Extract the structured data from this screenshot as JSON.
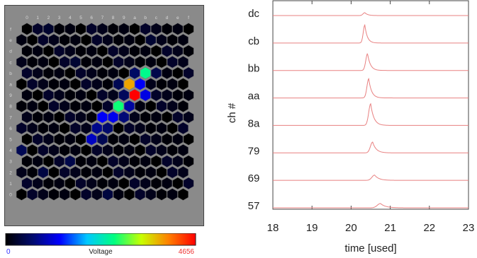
{
  "chart_data": [
    {
      "type": "heatmap",
      "columns": [
        "0",
        "1",
        "2",
        "3",
        "4",
        "5",
        "6",
        "7",
        "8",
        "9",
        "a",
        "b",
        "c",
        "d",
        "e",
        "f"
      ],
      "rows": [
        "f",
        "e",
        "d",
        "c",
        "b",
        "a",
        "9",
        "8",
        "7",
        "6",
        "5",
        "4",
        "3",
        "2",
        "1",
        "0"
      ],
      "active_cells": [
        {
          "row": "b",
          "col": "b",
          "value": 2600
        },
        {
          "row": "a",
          "col": "a",
          "value": 3800
        },
        {
          "row": "a",
          "col": "b",
          "value": 1300
        },
        {
          "row": "9",
          "col": "a",
          "value": 4656
        },
        {
          "row": "9",
          "col": "b",
          "value": 1200
        },
        {
          "row": "8",
          "col": "9",
          "value": 2700
        },
        {
          "row": "8",
          "col": "a",
          "value": 900
        },
        {
          "row": "7",
          "col": "7",
          "value": 1300
        },
        {
          "row": "7",
          "col": "8",
          "value": 1250
        },
        {
          "row": "7",
          "col": "9",
          "value": 700
        },
        {
          "row": "6",
          "col": "7",
          "value": 800
        },
        {
          "row": "6",
          "col": "8",
          "value": 650
        },
        {
          "row": "5",
          "col": "6",
          "value": 1050
        },
        {
          "row": "5",
          "col": "7",
          "value": 500
        },
        {
          "row": "b",
          "col": "a",
          "value": 600
        },
        {
          "row": "a",
          "col": "9",
          "value": 500
        },
        {
          "row": "9",
          "col": "9",
          "value": 550
        },
        {
          "row": "b",
          "col": "c",
          "value": 450
        },
        {
          "row": "c",
          "col": "5",
          "value": 300
        },
        {
          "row": "3",
          "col": "4",
          "value": 450
        },
        {
          "row": "2",
          "col": "2",
          "value": 400
        },
        {
          "row": "4",
          "col": "0",
          "value": 500
        },
        {
          "row": "0",
          "col": "8",
          "value": 380
        },
        {
          "row": "e",
          "col": "c",
          "value": 300
        },
        {
          "row": "f",
          "col": "2",
          "value": 280
        }
      ],
      "colorbar": {
        "label": "Voltage",
        "min_label": "0",
        "max_label": "4656",
        "min": 0,
        "max": 4656,
        "stops": [
          "#000000",
          "#000a6e",
          "#0000ff",
          "#00c8ff",
          "#00ff80",
          "#c8ff00",
          "#ff8000",
          "#ff0000"
        ]
      }
    },
    {
      "type": "line",
      "xlabel": "time [used]",
      "ylabel": "ch #",
      "xlim": [
        18,
        23
      ],
      "xticks": [
        "18",
        "19",
        "20",
        "21",
        "22",
        "23"
      ],
      "series_color": "#e88080",
      "channels": [
        "dc",
        "cb",
        "bb",
        "aa",
        "8a",
        "79",
        "69",
        "57"
      ],
      "series": [
        {
          "name": "dc",
          "peak_time": 20.35,
          "amplitude": 0.12,
          "width": 0.08
        },
        {
          "name": "cb",
          "peak_time": 20.35,
          "amplitude": 0.75,
          "width": 0.07
        },
        {
          "name": "bb",
          "peak_time": 20.42,
          "amplitude": 0.7,
          "width": 0.08
        },
        {
          "name": "aa",
          "peak_time": 20.45,
          "amplitude": 0.8,
          "width": 0.08
        },
        {
          "name": "8a",
          "peak_time": 20.5,
          "amplitude": 0.9,
          "width": 0.09
        },
        {
          "name": "79",
          "peak_time": 20.55,
          "amplitude": 0.45,
          "width": 0.1
        },
        {
          "name": "69",
          "peak_time": 20.6,
          "amplitude": 0.22,
          "width": 0.12
        },
        {
          "name": "57",
          "peak_time": 20.75,
          "amplitude": 0.18,
          "width": 0.14
        }
      ]
    }
  ]
}
